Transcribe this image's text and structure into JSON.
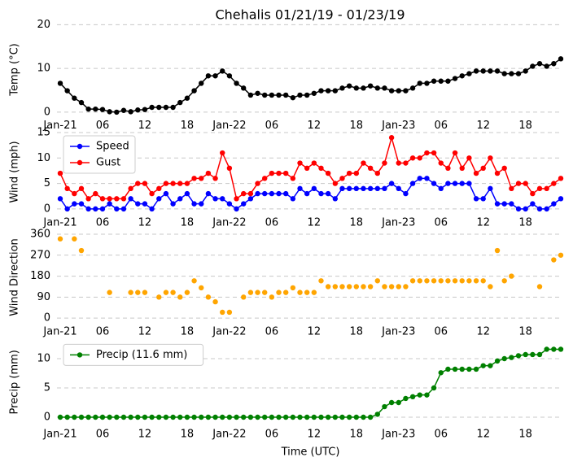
{
  "chart_data": [
    {
      "type": "line",
      "title": "Chehalis 01/21/19 - 01/23/19",
      "ylabel": "Temp (°C)",
      "color": "#000000",
      "categories": [
        "Jan-21",
        null,
        null,
        null,
        null,
        null,
        "06",
        null,
        null,
        null,
        null,
        null,
        "12",
        null,
        null,
        null,
        null,
        null,
        "18",
        null,
        null,
        null,
        null,
        null,
        "Jan-22",
        null,
        null,
        null,
        null,
        null,
        "06",
        null,
        null,
        null,
        null,
        null,
        "12",
        null,
        null,
        null,
        null,
        null,
        "18",
        null,
        null,
        null,
        null,
        null,
        "Jan-23",
        null,
        null,
        null,
        null,
        null,
        "06",
        null,
        null,
        null,
        null,
        null,
        "12",
        null,
        null,
        null,
        null,
        null,
        "18",
        null,
        null,
        null,
        null,
        null
      ],
      "values": [
        6.6,
        4.9,
        3.2,
        2.2,
        0.7,
        0.7,
        0.6,
        0.1,
        0,
        0.4,
        0.1,
        0.5,
        0.6,
        1.1,
        1.1,
        1.1,
        1.1,
        2.2,
        3.2,
        4.9,
        6.6,
        8.3,
        8.3,
        9.4,
        8.3,
        6.6,
        5.5,
        3.9,
        4.3,
        3.9,
        3.9,
        3.9,
        3.9,
        3.3,
        3.9,
        3.9,
        4.3,
        4.9,
        4.9,
        4.9,
        5.5,
        6.0,
        5.5,
        5.5,
        6.0,
        5.5,
        5.5,
        4.9,
        4.9,
        4.9,
        5.5,
        6.6,
        6.6,
        7.1,
        7.1,
        7.1,
        7.7,
        8.3,
        8.8,
        9.4,
        9.4,
        9.4,
        9.4,
        8.8,
        8.8,
        8.8,
        9.4,
        10.5,
        11.1,
        10.5,
        11.1,
        12.2
      ],
      "ylim": [
        -0.5,
        20
      ],
      "yticks": [
        0,
        10,
        20
      ],
      "grid": true
    },
    {
      "type": "line",
      "ylabel": "Wind (mph)",
      "legend": "upper left",
      "categories": [
        "Jan-21",
        null,
        null,
        null,
        null,
        null,
        "06",
        null,
        null,
        null,
        null,
        null,
        "12",
        null,
        null,
        null,
        null,
        null,
        "18",
        null,
        null,
        null,
        null,
        null,
        "Jan-22",
        null,
        null,
        null,
        null,
        null,
        "06",
        null,
        null,
        null,
        null,
        null,
        "12",
        null,
        null,
        null,
        null,
        null,
        "18",
        null,
        null,
        null,
        null,
        null,
        "Jan-23",
        null,
        null,
        null,
        null,
        null,
        "06",
        null,
        null,
        null,
        null,
        null,
        "12",
        null,
        null,
        null,
        null,
        null,
        "18",
        null,
        null,
        null,
        null,
        null
      ],
      "series": [
        {
          "name": "Speed",
          "color": "#0000ff",
          "values": [
            2,
            0,
            1,
            1,
            0,
            0,
            0,
            1,
            0,
            0,
            2,
            1,
            1,
            0,
            2,
            3,
            1,
            2,
            3,
            1,
            1,
            3,
            2,
            2,
            1,
            0,
            1,
            2,
            3,
            3,
            3,
            3,
            3,
            2,
            4,
            3,
            4,
            3,
            3,
            2,
            4,
            4,
            4,
            4,
            4,
            4,
            4,
            5,
            4,
            3,
            5,
            6,
            6,
            5,
            4,
            5,
            5,
            5,
            5,
            2,
            2,
            4,
            1,
            1,
            1,
            0,
            0,
            1,
            0,
            0,
            1,
            2
          ]
        },
        {
          "name": "Gust",
          "color": "#ff0000",
          "values": [
            7,
            4,
            3,
            4,
            2,
            3,
            2,
            2,
            2,
            2,
            4,
            5,
            5,
            3,
            4,
            5,
            5,
            5,
            5,
            6,
            6,
            7,
            6,
            11,
            8,
            2,
            3,
            3,
            5,
            6,
            7,
            7,
            7,
            6,
            9,
            8,
            9,
            8,
            7,
            5,
            6,
            7,
            7,
            9,
            8,
            7,
            9,
            14,
            9,
            9,
            10,
            10,
            11,
            11,
            9,
            8,
            11,
            8,
            10,
            7,
            8,
            10,
            7,
            8,
            4,
            5,
            5,
            3,
            4,
            4,
            5,
            6
          ]
        }
      ],
      "ylim": [
        -0.5,
        15
      ],
      "yticks": [
        0,
        5,
        10,
        15
      ],
      "grid": true
    },
    {
      "type": "scatter",
      "ylabel": "Wind Direction",
      "color": "#ffa500",
      "categories": [
        "Jan-21",
        null,
        null,
        null,
        null,
        null,
        "06",
        null,
        null,
        null,
        null,
        null,
        "12",
        null,
        null,
        null,
        null,
        null,
        "18",
        null,
        null,
        null,
        null,
        null,
        "Jan-22",
        null,
        null,
        null,
        null,
        null,
        "06",
        null,
        null,
        null,
        null,
        null,
        "12",
        null,
        null,
        null,
        null,
        null,
        "18",
        null,
        null,
        null,
        null,
        null,
        "Jan-23",
        null,
        null,
        null,
        null,
        null,
        "06",
        null,
        null,
        null,
        null,
        null,
        "12",
        null,
        null,
        null,
        null,
        null,
        "18",
        null,
        null,
        null,
        null,
        null
      ],
      "values": [
        340,
        null,
        340,
        290,
        null,
        null,
        null,
        110,
        null,
        null,
        110,
        110,
        110,
        null,
        90,
        110,
        110,
        90,
        110,
        160,
        130,
        90,
        70,
        25,
        25,
        null,
        90,
        110,
        110,
        110,
        90,
        110,
        110,
        130,
        110,
        110,
        110,
        160,
        135,
        135,
        135,
        135,
        135,
        135,
        135,
        160,
        135,
        135,
        135,
        135,
        160,
        160,
        160,
        160,
        160,
        160,
        160,
        160,
        160,
        160,
        160,
        135,
        290,
        160,
        180,
        null,
        null,
        null,
        135,
        null,
        250,
        270
      ],
      "ylim": [
        -10,
        360
      ],
      "yticks": [
        0,
        90,
        180,
        270,
        360
      ],
      "grid": true
    },
    {
      "type": "line",
      "ylabel": "Precip (mm)",
      "xlabel": "Time (UTC)",
      "legend": "upper left",
      "categories": [
        "Jan-21",
        null,
        null,
        null,
        null,
        null,
        "06",
        null,
        null,
        null,
        null,
        null,
        "12",
        null,
        null,
        null,
        null,
        null,
        "18",
        null,
        null,
        null,
        null,
        null,
        "Jan-22",
        null,
        null,
        null,
        null,
        null,
        "06",
        null,
        null,
        null,
        null,
        null,
        "12",
        null,
        null,
        null,
        null,
        null,
        "18",
        null,
        null,
        null,
        null,
        null,
        "Jan-23",
        null,
        null,
        null,
        null,
        null,
        "06",
        null,
        null,
        null,
        null,
        null,
        "12",
        null,
        null,
        null,
        null,
        null,
        "18",
        null,
        null,
        null,
        null,
        null
      ],
      "series": [
        {
          "name": "Precip (11.6 mm)",
          "color": "#008000",
          "values": [
            0,
            0,
            0,
            0,
            0,
            0,
            0,
            0,
            0,
            0,
            0,
            0,
            0,
            0,
            0,
            0,
            0,
            0,
            0,
            0,
            0,
            0,
            0,
            0,
            0,
            0,
            0,
            0,
            0,
            0,
            0,
            0,
            0,
            0,
            0,
            0,
            0,
            0,
            0,
            0,
            0,
            0,
            0,
            0,
            0,
            0.5,
            1.8,
            2.5,
            2.5,
            3.2,
            3.5,
            3.8,
            3.8,
            5.0,
            7.6,
            8.2,
            8.2,
            8.2,
            8.2,
            8.2,
            8.8,
            8.8,
            9.6,
            10.0,
            10.2,
            10.5,
            10.7,
            10.7,
            10.7,
            11.6,
            11.6,
            11.6
          ]
        }
      ],
      "ylim": [
        -1,
        13
      ],
      "yticks": [
        0,
        5,
        10
      ],
      "grid": true
    }
  ]
}
